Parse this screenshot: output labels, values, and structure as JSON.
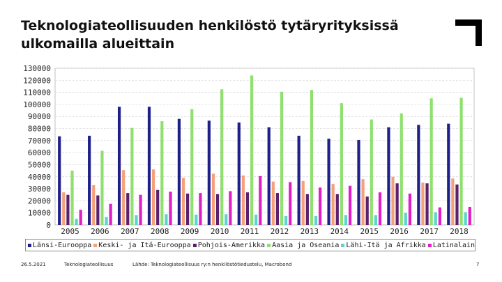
{
  "slide": {
    "title": "Teknologiateollisuuden henkilöstö tytäryrityksissä ulkomailla alueittain",
    "footer": {
      "date": "26.5.2021",
      "org": "Teknologiateollisuus",
      "source": "Lähde: Teknologiateollisuus ry:n henkilöstötiedustelu, Macrobond",
      "page": "7"
    },
    "icon": "corner-bracket-logo"
  },
  "chart_data": {
    "type": "bar",
    "title": "",
    "xlabel": "",
    "ylabel": "",
    "ylim": [
      0,
      130000
    ],
    "yticks": [
      "0",
      "10000",
      "20000",
      "30000",
      "40000",
      "50000",
      "60000",
      "70000",
      "80000",
      "90000",
      "100000",
      "110000",
      "120000",
      "130000"
    ],
    "categories": [
      "2005",
      "2006",
      "2007",
      "2008",
      "2009",
      "2010",
      "2011",
      "2012",
      "2013",
      "2014",
      "2015",
      "2016",
      "2017",
      "2018"
    ],
    "grid": true,
    "legend": "bottom",
    "series": [
      {
        "name": "Länsi-Eurooppa",
        "color": "#1f1f8a",
        "values": [
          73500,
          74000,
          98000,
          98000,
          88000,
          86500,
          85000,
          81000,
          74000,
          71500,
          70500,
          81000,
          83000,
          84000
        ]
      },
      {
        "name": "Keski- ja Itä-Eurooppa",
        "color": "#f4a07a",
        "values": [
          27000,
          33000,
          45500,
          46000,
          39000,
          42500,
          41000,
          36000,
          36500,
          34000,
          38000,
          40000,
          35000,
          38500
        ]
      },
      {
        "name": "Pohjois-Amerikka",
        "color": "#5b1f6e",
        "values": [
          25000,
          24500,
          26500,
          29000,
          26000,
          25500,
          27000,
          26500,
          25500,
          25500,
          23500,
          34500,
          34500,
          33500
        ]
      },
      {
        "name": "Aasia ja Oseania",
        "color": "#90e070",
        "values": [
          45000,
          61500,
          80500,
          86000,
          96000,
          112500,
          124000,
          110500,
          112000,
          101000,
          87500,
          92500,
          105000,
          105500
        ]
      },
      {
        "name": "Lähi-Itä ja Afrikka",
        "color": "#5ad6cf",
        "values": [
          5000,
          6500,
          8000,
          9000,
          8500,
          9000,
          8500,
          7500,
          7500,
          8000,
          8000,
          10000,
          10500,
          10500
        ]
      },
      {
        "name": "Latinalainen Amerikka",
        "color": "#e01ec8",
        "values": [
          12500,
          17500,
          25000,
          27500,
          26500,
          28000,
          40500,
          35500,
          31000,
          32500,
          27000,
          26000,
          14500,
          15000
        ]
      }
    ]
  }
}
